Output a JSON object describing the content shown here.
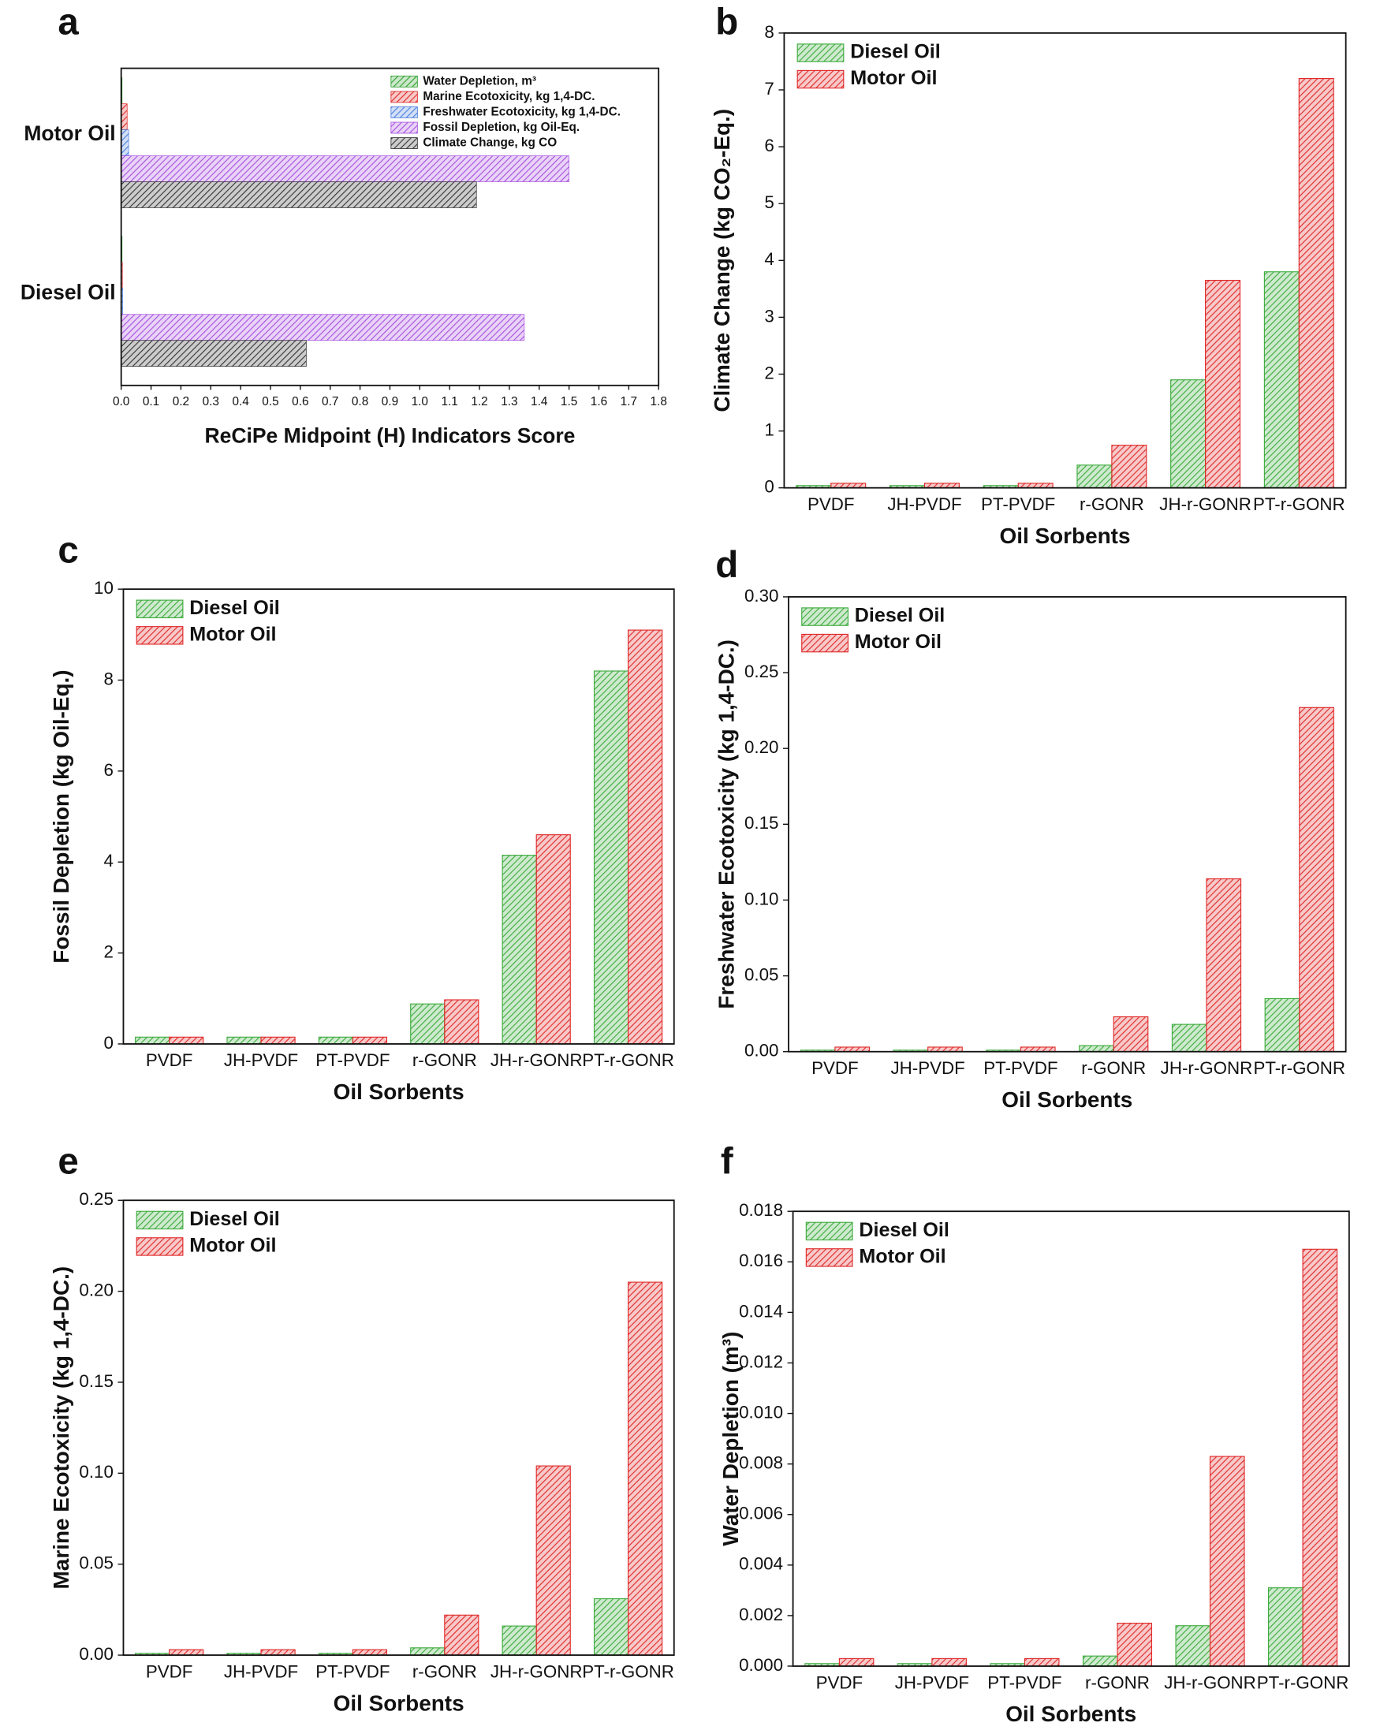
{
  "chart_data": [
    {
      "type": "hbar",
      "label": "a",
      "xlabel": "ReCiPe Midpoint (H) Indicators Score",
      "categories": [
        "Motor Oil",
        "Diesel Oil"
      ],
      "series": [
        {
          "name": "Water Depletion, m³",
          "color": "#2ea02e",
          "values": [
            0.002,
            0.001
          ]
        },
        {
          "name": "Marine Ecotoxicity, kg 1,4-DC.",
          "color": "#e02828",
          "values": [
            0.02,
            0.004
          ]
        },
        {
          "name": "Freshwater Ecotoxicity, kg 1,4-DC.",
          "color": "#4a7fe0",
          "values": [
            0.025,
            0.005
          ]
        },
        {
          "name": "Fossil Depletion, kg Oil-Eq.",
          "color": "#a64fe0",
          "values": [
            1.5,
            1.35
          ]
        },
        {
          "name": "Climate Change, kg CO",
          "color": "#333333",
          "values": [
            1.19,
            0.62
          ]
        }
      ],
      "xlim": [
        0,
        1.8
      ],
      "xticks": [
        {
          "value": 0,
          "label": "0.0"
        },
        0.1,
        0.2,
        0.3,
        0.4,
        0.5,
        0.6,
        0.7,
        0.8,
        0.9,
        {
          "value": 1,
          "label": "1.0"
        },
        1.1,
        1.2,
        1.3,
        1.4,
        1.5,
        1.6,
        1.7,
        1.8
      ],
      "legend": "top-right"
    },
    {
      "type": "bar",
      "label": "b",
      "ylabel": "Climate Change (kg CO₂-Eq.)",
      "xlabel": "Oil Sorbents",
      "categories": [
        "PVDF",
        "JH-PVDF",
        "PT-PVDF",
        "r-GONR",
        "JH-r-GONR",
        "PT-r-GONR"
      ],
      "series": [
        {
          "name": "Diesel Oil",
          "color": "#3caa3c",
          "values": [
            0.04,
            0.04,
            0.04,
            0.4,
            1.9,
            3.8
          ]
        },
        {
          "name": "Motor Oil",
          "color": "#e02828",
          "values": [
            0.08,
            0.08,
            0.08,
            0.75,
            3.65,
            7.2
          ]
        }
      ],
      "ylim": [
        0,
        8
      ],
      "yticks": [
        0,
        1,
        2,
        3,
        4,
        5,
        6,
        7,
        8
      ],
      "legend": "top-left"
    },
    {
      "type": "bar",
      "label": "c",
      "ylabel": "Fossil Depletion (kg Oil-Eq.)",
      "xlabel": "Oil Sorbents",
      "categories": [
        "PVDF",
        "JH-PVDF",
        "PT-PVDF",
        "r-GONR",
        "JH-r-GONR",
        "PT-r-GONR"
      ],
      "series": [
        {
          "name": "Diesel Oil",
          "color": "#3caa3c",
          "values": [
            0.15,
            0.15,
            0.15,
            0.88,
            4.15,
            8.2
          ]
        },
        {
          "name": "Motor Oil",
          "color": "#e02828",
          "values": [
            0.15,
            0.15,
            0.15,
            0.97,
            4.6,
            9.1
          ]
        }
      ],
      "ylim": [
        0,
        10
      ],
      "yticks": [
        0,
        2,
        4,
        6,
        8,
        10
      ],
      "legend": "top-left"
    },
    {
      "type": "bar",
      "label": "d",
      "ylabel": "Freshwater Ecotoxicity (kg 1,4-DC.)",
      "xlabel": "Oil Sorbents",
      "categories": [
        "PVDF",
        "JH-PVDF",
        "PT-PVDF",
        "r-GONR",
        "JH-r-GONR",
        "PT-r-GONR"
      ],
      "series": [
        {
          "name": "Diesel Oil",
          "color": "#3caa3c",
          "values": [
            0.001,
            0.001,
            0.001,
            0.004,
            0.018,
            0.035
          ]
        },
        {
          "name": "Motor Oil",
          "color": "#e02828",
          "values": [
            0.003,
            0.003,
            0.003,
            0.023,
            0.114,
            0.227
          ]
        }
      ],
      "ylim": [
        0,
        0.3
      ],
      "yticks": [
        {
          "value": 0,
          "label": "0.00"
        },
        0.05,
        {
          "value": 0.1,
          "label": "0.10"
        },
        0.15,
        {
          "value": 0.2,
          "label": "0.20"
        },
        0.25,
        {
          "value": 0.3,
          "label": "0.30"
        }
      ],
      "legend": "top-left"
    },
    {
      "type": "bar",
      "label": "e",
      "ylabel": "Marine Ecotoxicity (kg 1,4-DC.)",
      "xlabel": "Oil Sorbents",
      "categories": [
        "PVDF",
        "JH-PVDF",
        "PT-PVDF",
        "r-GONR",
        "JH-r-GONR",
        "PT-r-GONR"
      ],
      "series": [
        {
          "name": "Diesel Oil",
          "color": "#3caa3c",
          "values": [
            0.001,
            0.001,
            0.001,
            0.004,
            0.016,
            0.031
          ]
        },
        {
          "name": "Motor Oil",
          "color": "#e02828",
          "values": [
            0.003,
            0.003,
            0.003,
            0.022,
            0.104,
            0.205
          ]
        }
      ],
      "ylim": [
        0,
        0.25
      ],
      "yticks": [
        {
          "value": 0,
          "label": "0.00"
        },
        0.05,
        {
          "value": 0.1,
          "label": "0.10"
        },
        0.15,
        {
          "value": 0.2,
          "label": "0.20"
        },
        0.25
      ],
      "legend": "top-left"
    },
    {
      "type": "bar",
      "label": "f",
      "ylabel": "Water Depletion (m³)",
      "xlabel": "Oil Sorbents",
      "categories": [
        "PVDF",
        "JH-PVDF",
        "PT-PVDF",
        "r-GONR",
        "JH-r-GONR",
        "PT-r-GONR"
      ],
      "series": [
        {
          "name": "Diesel Oil",
          "color": "#3caa3c",
          "values": [
            0.0001,
            0.0001,
            0.0001,
            0.0004,
            0.0016,
            0.0031
          ]
        },
        {
          "name": "Motor Oil",
          "color": "#e02828",
          "values": [
            0.0003,
            0.0003,
            0.0003,
            0.0017,
            0.0083,
            0.0165
          ]
        }
      ],
      "ylim": [
        0,
        0.018
      ],
      "yticks": [
        {
          "value": 0,
          "label": "0.000"
        },
        0.002,
        0.004,
        0.006,
        0.008,
        {
          "value": 0.01,
          "label": "0.010"
        },
        0.012,
        0.014,
        0.016,
        0.018
      ],
      "legend": "top-left"
    }
  ]
}
